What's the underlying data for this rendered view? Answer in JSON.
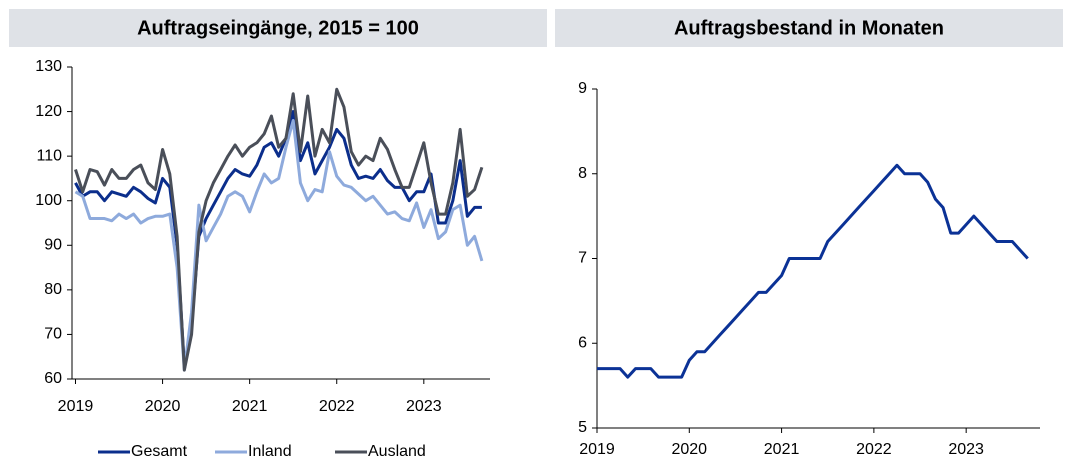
{
  "chart_data": [
    {
      "type": "line",
      "title": "Auftragseingänge, 2015 = 100",
      "x": [
        2019,
        2019.083,
        2019.167,
        2019.25,
        2019.333,
        2019.417,
        2019.5,
        2019.583,
        2019.667,
        2019.75,
        2019.833,
        2019.917,
        2020,
        2020.083,
        2020.167,
        2020.25,
        2020.333,
        2020.417,
        2020.5,
        2020.583,
        2020.667,
        2020.75,
        2020.833,
        2020.917,
        2021,
        2021.083,
        2021.167,
        2021.25,
        2021.333,
        2021.417,
        2021.5,
        2021.583,
        2021.667,
        2021.75,
        2021.833,
        2021.917,
        2022,
        2022.083,
        2022.167,
        2022.25,
        2022.333,
        2022.417,
        2022.5,
        2022.583,
        2022.667,
        2022.75,
        2022.833,
        2022.917,
        2023,
        2023.083,
        2023.167,
        2023.25,
        2023.333,
        2023.417,
        2023.5,
        2023.583,
        2023.667
      ],
      "series": [
        {
          "name": "Gesamt",
          "color": "#0b2e8c",
          "values": [
            104,
            101,
            102,
            102,
            100,
            102,
            101.5,
            101,
            103,
            102,
            100.5,
            99.5,
            105,
            103,
            90,
            63,
            72,
            92,
            96,
            99,
            102,
            105,
            107,
            106,
            105.5,
            108,
            112,
            113,
            110,
            114,
            120,
            109,
            113,
            106,
            109,
            112,
            116,
            114,
            108,
            105,
            105.5,
            105,
            107,
            104.5,
            103,
            103,
            100,
            102,
            102,
            106,
            95,
            95,
            100,
            109,
            96.5,
            98.5,
            98.5
          ]
        },
        {
          "name": "Inland",
          "color": "#8eaadc",
          "values": [
            102,
            101,
            96,
            96,
            96,
            95.5,
            97,
            96,
            97,
            95,
            96,
            96.5,
            96.5,
            97,
            85,
            62,
            75,
            99,
            91,
            94,
            97,
            101,
            102,
            101,
            97.5,
            102,
            106,
            104,
            105,
            112,
            118,
            104,
            100,
            102.5,
            102,
            111,
            105.5,
            103.5,
            103,
            101.5,
            100,
            101,
            99,
            97,
            97.5,
            96,
            95.5,
            99.5,
            94,
            98,
            91.5,
            93,
            98,
            99,
            90,
            92,
            86.5
          ]
        },
        {
          "name": "Ausland",
          "color": "#4a4f59",
          "values": [
            107,
            102,
            107,
            106.5,
            103.5,
            107,
            105,
            105,
            107,
            108,
            104,
            102.5,
            111.5,
            106,
            92,
            62,
            70,
            93,
            100,
            104,
            107,
            110,
            112.5,
            110,
            112,
            113,
            115,
            119,
            112,
            114,
            124,
            111,
            123.5,
            110,
            116,
            113,
            125,
            121,
            111,
            108,
            110,
            109,
            114,
            111.5,
            107,
            103,
            103,
            108,
            113,
            104,
            97,
            97,
            104,
            116,
            101,
            102.5,
            107.5
          ]
        }
      ],
      "xlim": [
        2018.96,
        2023.76
      ],
      "xticks": [
        2019,
        2020,
        2021,
        2022,
        2023
      ],
      "ylim": [
        60,
        130
      ],
      "yticks": [
        60,
        70,
        80,
        90,
        100,
        110,
        120,
        130
      ],
      "legend": "bottom"
    },
    {
      "type": "line",
      "title": "Auftragsbestand in Monaten",
      "x": [
        2019,
        2019.083,
        2019.167,
        2019.25,
        2019.333,
        2019.417,
        2019.5,
        2019.583,
        2019.667,
        2019.75,
        2019.833,
        2019.917,
        2020,
        2020.083,
        2020.167,
        2020.25,
        2020.333,
        2020.417,
        2020.5,
        2020.583,
        2020.667,
        2020.75,
        2020.833,
        2020.917,
        2021,
        2021.083,
        2021.167,
        2021.25,
        2021.333,
        2021.417,
        2021.5,
        2021.583,
        2021.667,
        2021.75,
        2021.833,
        2021.917,
        2022,
        2022.083,
        2022.167,
        2022.25,
        2022.333,
        2022.417,
        2022.5,
        2022.583,
        2022.667,
        2022.75,
        2022.833,
        2022.917,
        2023,
        2023.083,
        2023.167,
        2023.25,
        2023.333,
        2023.417,
        2023.5,
        2023.583,
        2023.667
      ],
      "series": [
        {
          "color": "#0b3296",
          "values": [
            5.7,
            5.7,
            5.7,
            5.7,
            5.6,
            5.7,
            5.7,
            5.7,
            5.6,
            5.6,
            5.6,
            5.6,
            5.8,
            5.9,
            5.9,
            6.0,
            6.1,
            6.2,
            6.3,
            6.4,
            6.5,
            6.6,
            6.6,
            6.7,
            6.8,
            7.0,
            7.0,
            7.0,
            7.0,
            7.0,
            7.2,
            7.3,
            7.4,
            7.5,
            7.6,
            7.7,
            7.8,
            7.9,
            8.0,
            8.1,
            8.0,
            8.0,
            8.0,
            7.9,
            7.7,
            7.6,
            7.3,
            7.3,
            7.4,
            7.5,
            7.4,
            7.3,
            7.2,
            7.2,
            7.2,
            7.1,
            7.0
          ]
        }
      ],
      "xlim": [
        2019,
        2023.8
      ],
      "xticks": [
        2019,
        2020,
        2021,
        2022,
        2023
      ],
      "ylim": [
        5,
        9
      ],
      "yticks": [
        5,
        6,
        7,
        8,
        9
      ]
    }
  ]
}
